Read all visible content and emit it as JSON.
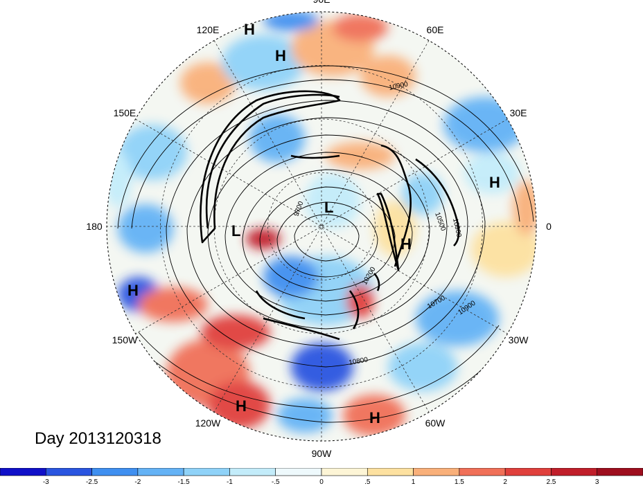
{
  "title": "Day 2013120318",
  "longitude_labels": [
    {
      "text": "90E",
      "angle": 90
    },
    {
      "text": "60E",
      "angle": 60
    },
    {
      "text": "30E",
      "angle": 30
    },
    {
      "text": "0",
      "angle": 0
    },
    {
      "text": "30W",
      "angle": -30
    },
    {
      "text": "60W",
      "angle": -60
    },
    {
      "text": "90W",
      "angle": -90
    },
    {
      "text": "120W",
      "angle": -120
    },
    {
      "text": "150W",
      "angle": -150
    },
    {
      "text": "180",
      "angle": 180
    },
    {
      "text": "150E",
      "angle": 150
    },
    {
      "text": "120E",
      "angle": 120
    }
  ],
  "pressure_centers": [
    {
      "type": "H",
      "label": "H"
    },
    {
      "type": "H",
      "label": "H"
    },
    {
      "type": "H",
      "label": "H"
    },
    {
      "type": "L",
      "label": "L"
    },
    {
      "type": "L",
      "label": "L"
    },
    {
      "type": "H",
      "label": "H"
    },
    {
      "type": "H",
      "label": "H"
    },
    {
      "type": "H",
      "label": "H"
    },
    {
      "type": "H",
      "label": "H"
    }
  ],
  "contour_labels": [
    "10900",
    "10500",
    "10900",
    "9700",
    "10200",
    "10700",
    "10900",
    "10800"
  ],
  "colorbar": {
    "tick_labels": [
      "-3",
      "-2.5",
      "-2",
      "-1.5",
      "-1",
      "-.5",
      "0",
      ".5",
      "1",
      "1.5",
      "2",
      "2.5",
      "3"
    ],
    "colors": [
      "#1010c8",
      "#2a55e0",
      "#3f8ff0",
      "#64b2f5",
      "#8fd2f8",
      "#c3ecfa",
      "#eef9fc",
      "#fdf5d6",
      "#fde1a0",
      "#f9b07a",
      "#f07058",
      "#e0403c",
      "#c01e2a",
      "#9e0e1e"
    ]
  }
}
